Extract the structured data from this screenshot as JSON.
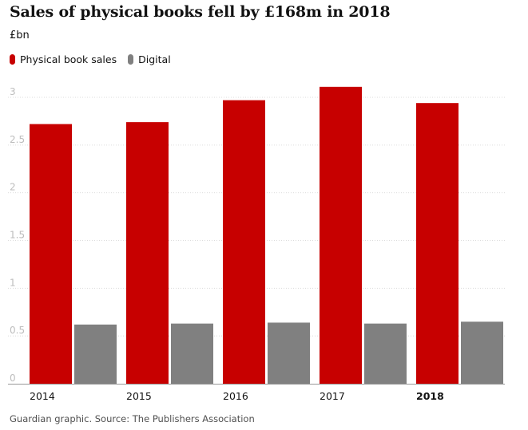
{
  "chart_data": {
    "type": "bar",
    "title": "Sales of physical books fell by £168m in 2018",
    "unit_label": "£bn",
    "categories": [
      "2014",
      "2015",
      "2016",
      "2017",
      "2018"
    ],
    "highlighted_category": "2018",
    "series": [
      {
        "name": "Physical book sales",
        "color": "#c70000",
        "values": [
          2.72,
          2.74,
          2.97,
          3.11,
          2.94
        ]
      },
      {
        "name": "Digital",
        "color": "#808080",
        "values": [
          0.62,
          0.63,
          0.64,
          0.63,
          0.65
        ]
      }
    ],
    "ylim": [
      0,
      3
    ],
    "yticks": [
      {
        "value": 0,
        "label": "0"
      },
      {
        "value": 0.5,
        "label": "0.5"
      },
      {
        "value": 1,
        "label": "1"
      },
      {
        "value": 1.5,
        "label": "1.5"
      },
      {
        "value": 2,
        "label": "2"
      },
      {
        "value": 2.5,
        "label": "2.5"
      },
      {
        "value": 3,
        "label": "3"
      }
    ],
    "grid": true,
    "legend_position": "top-left",
    "source": "Guardian graphic. Source: The Publishers Association"
  }
}
